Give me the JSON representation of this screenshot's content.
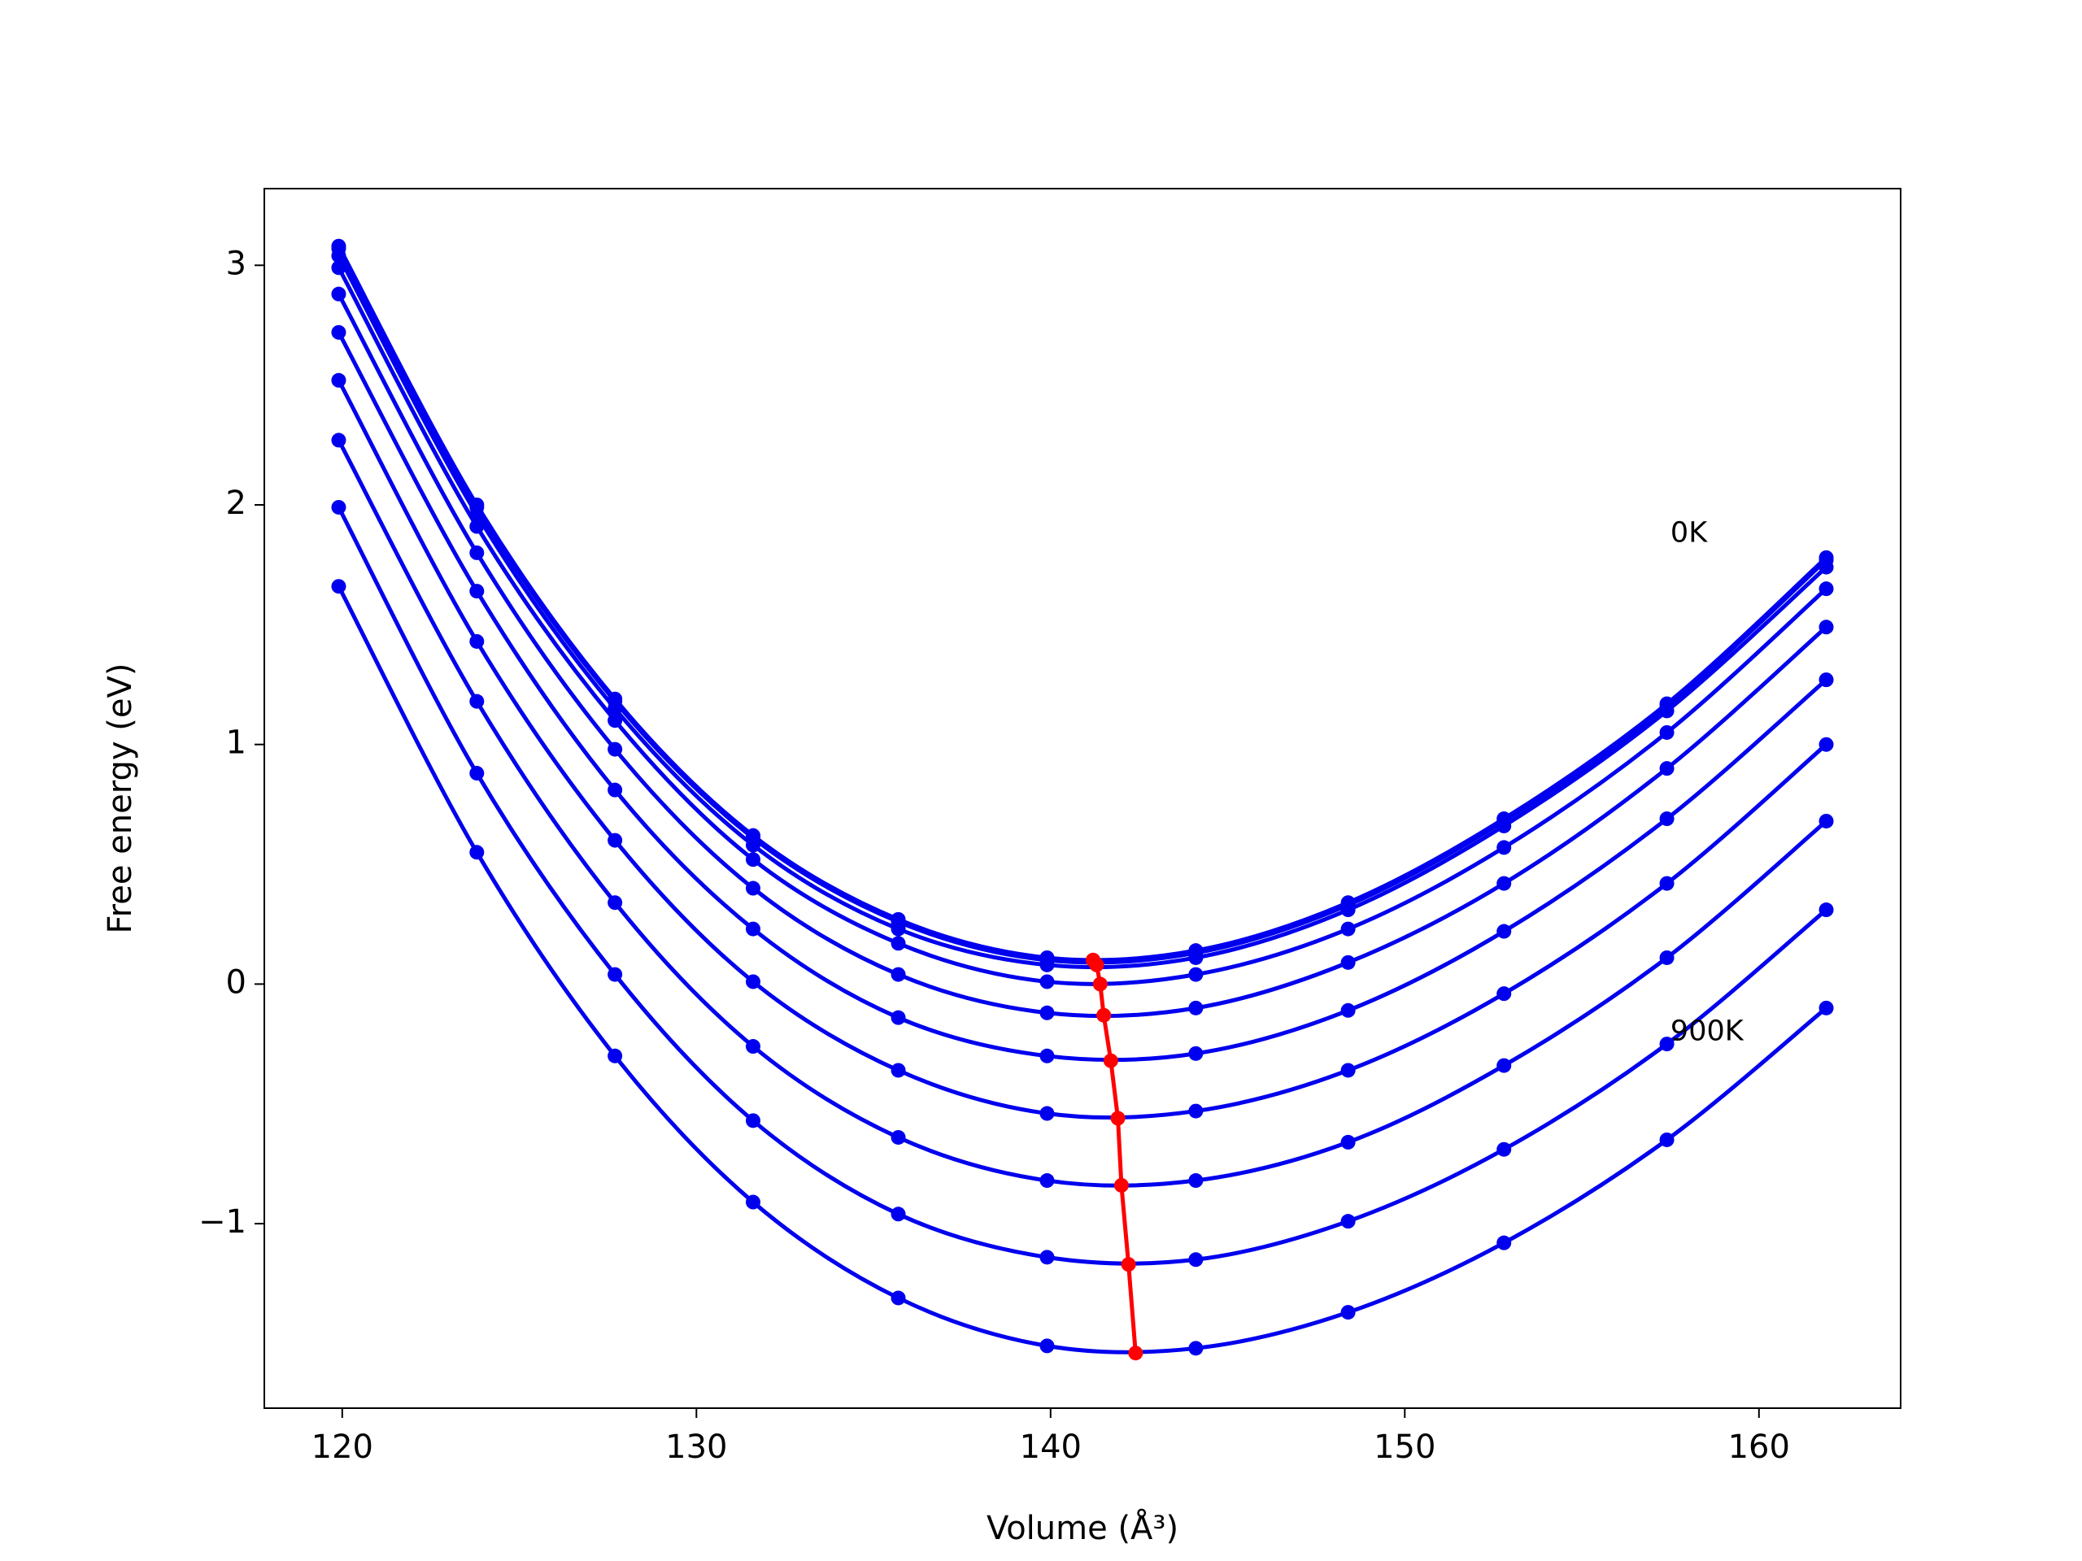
{
  "chart_data": {
    "type": "line",
    "xlabel": "Volume (Å³)",
    "ylabel": "Free energy (eV)",
    "x": [
      119.9,
      123.8,
      127.7,
      131.6,
      135.7,
      139.9,
      144.1,
      148.4,
      152.8,
      157.4,
      161.9
    ],
    "series": [
      {
        "color": "#0000ee",
        "values": [
          3.08,
          2.0,
          1.19,
          0.62,
          0.27,
          0.11,
          0.14,
          0.34,
          0.69,
          1.17,
          1.78
        ]
      },
      {
        "color": "#0000ee",
        "values": [
          3.07,
          1.99,
          1.18,
          0.61,
          0.26,
          0.1,
          0.13,
          0.33,
          0.68,
          1.16,
          1.77
        ]
      },
      {
        "color": "#0000ee",
        "values": [
          3.04,
          1.96,
          1.15,
          0.58,
          0.23,
          0.08,
          0.11,
          0.31,
          0.66,
          1.14,
          1.74
        ]
      },
      {
        "color": "#0000ee",
        "values": [
          2.99,
          1.91,
          1.1,
          0.52,
          0.17,
          0.01,
          0.04,
          0.23,
          0.57,
          1.05,
          1.65
        ]
      },
      {
        "color": "#0000ee",
        "values": [
          2.88,
          1.8,
          0.98,
          0.4,
          0.04,
          -0.12,
          -0.1,
          0.09,
          0.42,
          0.9,
          1.49
        ]
      },
      {
        "color": "#0000ee",
        "values": [
          2.72,
          1.64,
          0.81,
          0.23,
          -0.14,
          -0.3,
          -0.29,
          -0.11,
          0.22,
          0.69,
          1.27
        ]
      },
      {
        "color": "#0000ee",
        "values": [
          2.52,
          1.43,
          0.6,
          0.01,
          -0.36,
          -0.54,
          -0.53,
          -0.36,
          -0.04,
          0.42,
          1.0
        ]
      },
      {
        "color": "#0000ee",
        "values": [
          2.27,
          1.18,
          0.34,
          -0.26,
          -0.64,
          -0.82,
          -0.82,
          -0.66,
          -0.34,
          0.11,
          0.68
        ]
      },
      {
        "color": "#0000ee",
        "values": [
          1.99,
          0.88,
          0.04,
          -0.57,
          -0.96,
          -1.14,
          -1.15,
          -0.99,
          -0.69,
          -0.25,
          0.31
        ]
      },
      {
        "color": "#0000ee",
        "values": [
          1.66,
          0.55,
          -0.3,
          -0.91,
          -1.31,
          -1.51,
          -1.52,
          -1.37,
          -1.08,
          -0.65,
          -0.1
        ]
      }
    ],
    "minima": {
      "color": "#ff0000",
      "x": [
        141.2,
        141.2,
        141.3,
        141.4,
        141.5,
        141.7,
        141.9,
        142.0,
        142.2,
        142.4
      ],
      "values": [
        0.1,
        0.1,
        0.08,
        0.0,
        -0.13,
        -0.32,
        -0.56,
        -0.84,
        -1.17,
        -1.54
      ]
    },
    "annotations": [
      {
        "text": "0K",
        "x": 157.5,
        "y": 1.88
      },
      {
        "text": "900K",
        "x": 157.5,
        "y": -0.2
      }
    ],
    "xlim": [
      117.8,
      164.0
    ],
    "ylim": [
      -1.77,
      3.32
    ],
    "xticks": [
      120,
      130,
      140,
      150,
      160
    ],
    "yticks": [
      {
        "value": -1,
        "label": "−1"
      },
      0,
      1,
      2,
      3
    ]
  }
}
